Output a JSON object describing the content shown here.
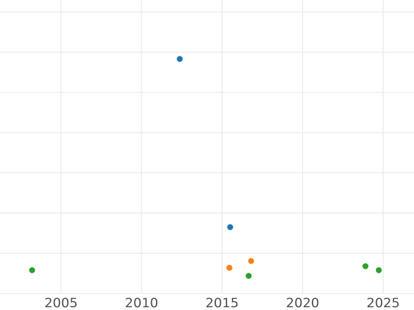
{
  "chart_data": {
    "type": "scatter",
    "title": "",
    "xlabel": "",
    "ylabel": "",
    "grid": true,
    "legend": false,
    "background": "#ffffff",
    "x_ticks": [
      {
        "year": 2005,
        "label": "2005"
      },
      {
        "year": 2010,
        "label": "2010"
      },
      {
        "year": 2015,
        "label": "2015"
      },
      {
        "year": 2020,
        "label": "2020"
      },
      {
        "year": 2025,
        "label": "2025"
      }
    ],
    "y_gridline_units": [
      0,
      1,
      2,
      3,
      4,
      5,
      6,
      7
    ],
    "y_axis_labels_visible": false,
    "y_unit": "gridline-steps above bottom gridline (y tick labels cropped out of view)",
    "x_range_visible": [
      2001.2,
      2026.9
    ],
    "y_range_visible_units": [
      0,
      7.3
    ],
    "series": [
      {
        "name": "series-blue",
        "color": "#1f77b4",
        "points": [
          {
            "x": 2012.37,
            "y": 5.83
          },
          {
            "x": 2015.5,
            "y": 1.65
          }
        ]
      },
      {
        "name": "series-orange",
        "color": "#ff7f0e",
        "points": [
          {
            "x": 2015.45,
            "y": 0.64
          },
          {
            "x": 2016.8,
            "y": 0.81
          }
        ]
      },
      {
        "name": "series-green",
        "color": "#2ca02c",
        "points": [
          {
            "x": 2003.2,
            "y": 0.58
          },
          {
            "x": 2016.65,
            "y": 0.44
          },
          {
            "x": 2023.9,
            "y": 0.68
          },
          {
            "x": 2024.73,
            "y": 0.58
          }
        ]
      }
    ],
    "colors": {
      "grid": "#eaeaea",
      "tick_label": "#4f4f4f",
      "background": "#ffffff"
    }
  }
}
